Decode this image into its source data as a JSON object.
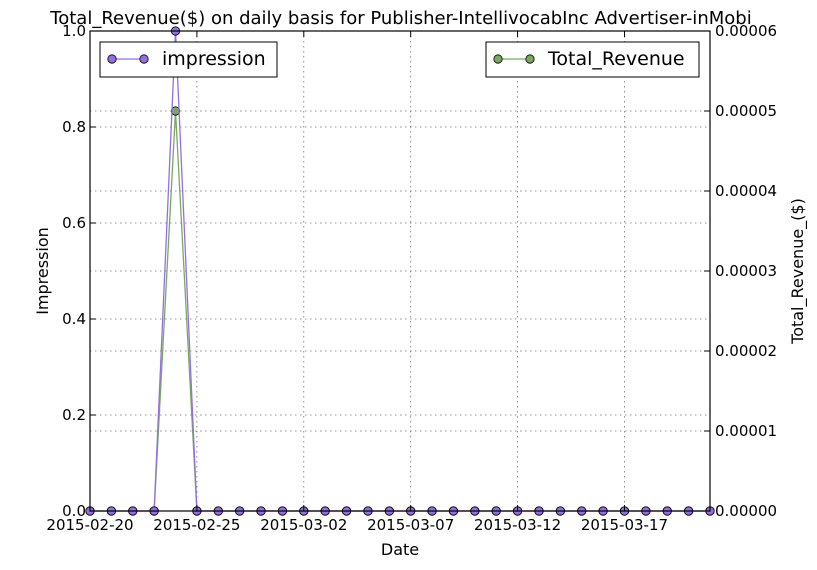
{
  "chart_data": {
    "type": "line",
    "title": "Total_Revenue($) on daily basis for Publisher-IntellivocabInc Advertiser-inMobi",
    "xlabel": "Date",
    "ylabel": "Impression",
    "y2label": "Total_Revenue_($)",
    "x_range": [
      "2015-02-20",
      "2015-03-21"
    ],
    "x_ticks": [
      "2015-02-20",
      "2015-02-25",
      "2015-03-02",
      "2015-03-07",
      "2015-03-12",
      "2015-03-17"
    ],
    "ylim": [
      0,
      1.0
    ],
    "y_ticks": [
      "0.0",
      "0.2",
      "0.4",
      "0.6",
      "0.8",
      "1.0"
    ],
    "y2lim": [
      0,
      6e-05
    ],
    "y2_ticks": [
      "0.00000",
      "0.00001",
      "0.00002",
      "0.00003",
      "0.00004",
      "0.00005",
      "0.00006"
    ],
    "grid": true,
    "x": [
      "2015-02-20",
      "2015-02-21",
      "2015-02-22",
      "2015-02-23",
      "2015-02-24",
      "2015-02-25",
      "2015-02-26",
      "2015-02-27",
      "2015-02-28",
      "2015-03-01",
      "2015-03-02",
      "2015-03-03",
      "2015-03-04",
      "2015-03-05",
      "2015-03-06",
      "2015-03-07",
      "2015-03-08",
      "2015-03-09",
      "2015-03-10",
      "2015-03-11",
      "2015-03-12",
      "2015-03-13",
      "2015-03-14",
      "2015-03-15",
      "2015-03-16",
      "2015-03-17",
      "2015-03-18",
      "2015-03-19",
      "2015-03-20",
      "2015-03-21"
    ],
    "series": [
      {
        "name": "impression",
        "axis": "left",
        "color": "#9370db",
        "legend": "top-left",
        "values": [
          0,
          0,
          0,
          0,
          1,
          0,
          0,
          0,
          0,
          0,
          0,
          0,
          0,
          0,
          0,
          0,
          0,
          0,
          0,
          0,
          0,
          0,
          0,
          0,
          0,
          0,
          0,
          0,
          0,
          0
        ]
      },
      {
        "name": "Total_Revenue",
        "axis": "right",
        "color": "#7aa864",
        "legend": "top-right",
        "values": [
          0,
          0,
          0,
          0,
          5e-05,
          0,
          0,
          0,
          0,
          0,
          0,
          0,
          0,
          0,
          0,
          0,
          0,
          0,
          0,
          0,
          0,
          0,
          0,
          0,
          0,
          0,
          0,
          0,
          0,
          0
        ]
      }
    ]
  }
}
